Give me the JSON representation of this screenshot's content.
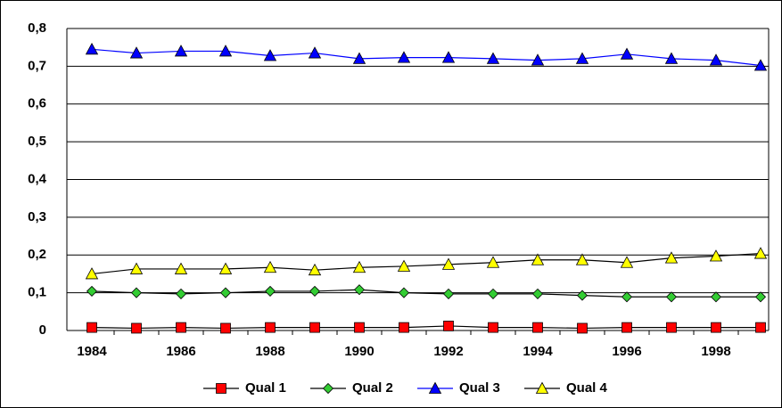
{
  "chart_data": {
    "type": "line",
    "categories": [
      "1984",
      null,
      "1986",
      null,
      "1988",
      null,
      "1990",
      null,
      "1992",
      null,
      "1994",
      null,
      "1996",
      null,
      "1998",
      null
    ],
    "series": [
      {
        "name": "Qual 1",
        "color": "#ff0000",
        "line_color": "#000000",
        "marker": "square",
        "values": [
          0.008,
          0.006,
          0.008,
          0.006,
          0.008,
          0.008,
          0.008,
          0.008,
          0.012,
          0.008,
          0.008,
          0.006,
          0.008,
          0.008,
          0.008,
          0.008
        ]
      },
      {
        "name": "Qual 2",
        "color": "#33cc33",
        "line_color": "#000000",
        "marker": "diamond",
        "values": [
          0.104,
          0.1,
          0.097,
          0.1,
          0.104,
          0.104,
          0.108,
          0.1,
          0.097,
          0.097,
          0.097,
          0.093,
          0.089,
          0.089,
          0.089,
          0.089
        ]
      },
      {
        "name": "Qual 3",
        "color": "#0000ff",
        "line_color": "#0000ff",
        "marker": "triangle",
        "values": [
          0.745,
          0.735,
          0.74,
          0.74,
          0.728,
          0.735,
          0.72,
          0.723,
          0.723,
          0.72,
          0.716,
          0.72,
          0.732,
          0.72,
          0.716,
          0.702
        ]
      },
      {
        "name": "Qual 4",
        "color": "#ffff00",
        "line_color": "#000000",
        "marker": "triangle",
        "values": [
          0.15,
          0.163,
          0.163,
          0.163,
          0.167,
          0.16,
          0.167,
          0.17,
          0.175,
          0.18,
          0.187,
          0.187,
          0.18,
          0.192,
          0.197,
          0.204
        ]
      }
    ],
    "ylim": [
      0,
      0.8
    ],
    "yticks": [
      0,
      {
        "value": 0.1,
        "label": "0,1"
      },
      {
        "value": 0.2,
        "label": "0,2"
      },
      {
        "value": 0.3,
        "label": "0,3"
      },
      {
        "value": 0.4,
        "label": "0,4"
      },
      {
        "value": 0.5,
        "label": "0,5"
      },
      {
        "value": 0.6,
        "label": "0,6"
      },
      {
        "value": 0.7,
        "label": "0,7"
      },
      {
        "value": 0.8,
        "label": "0,8"
      }
    ],
    "grid": true,
    "legend": "bottom"
  }
}
